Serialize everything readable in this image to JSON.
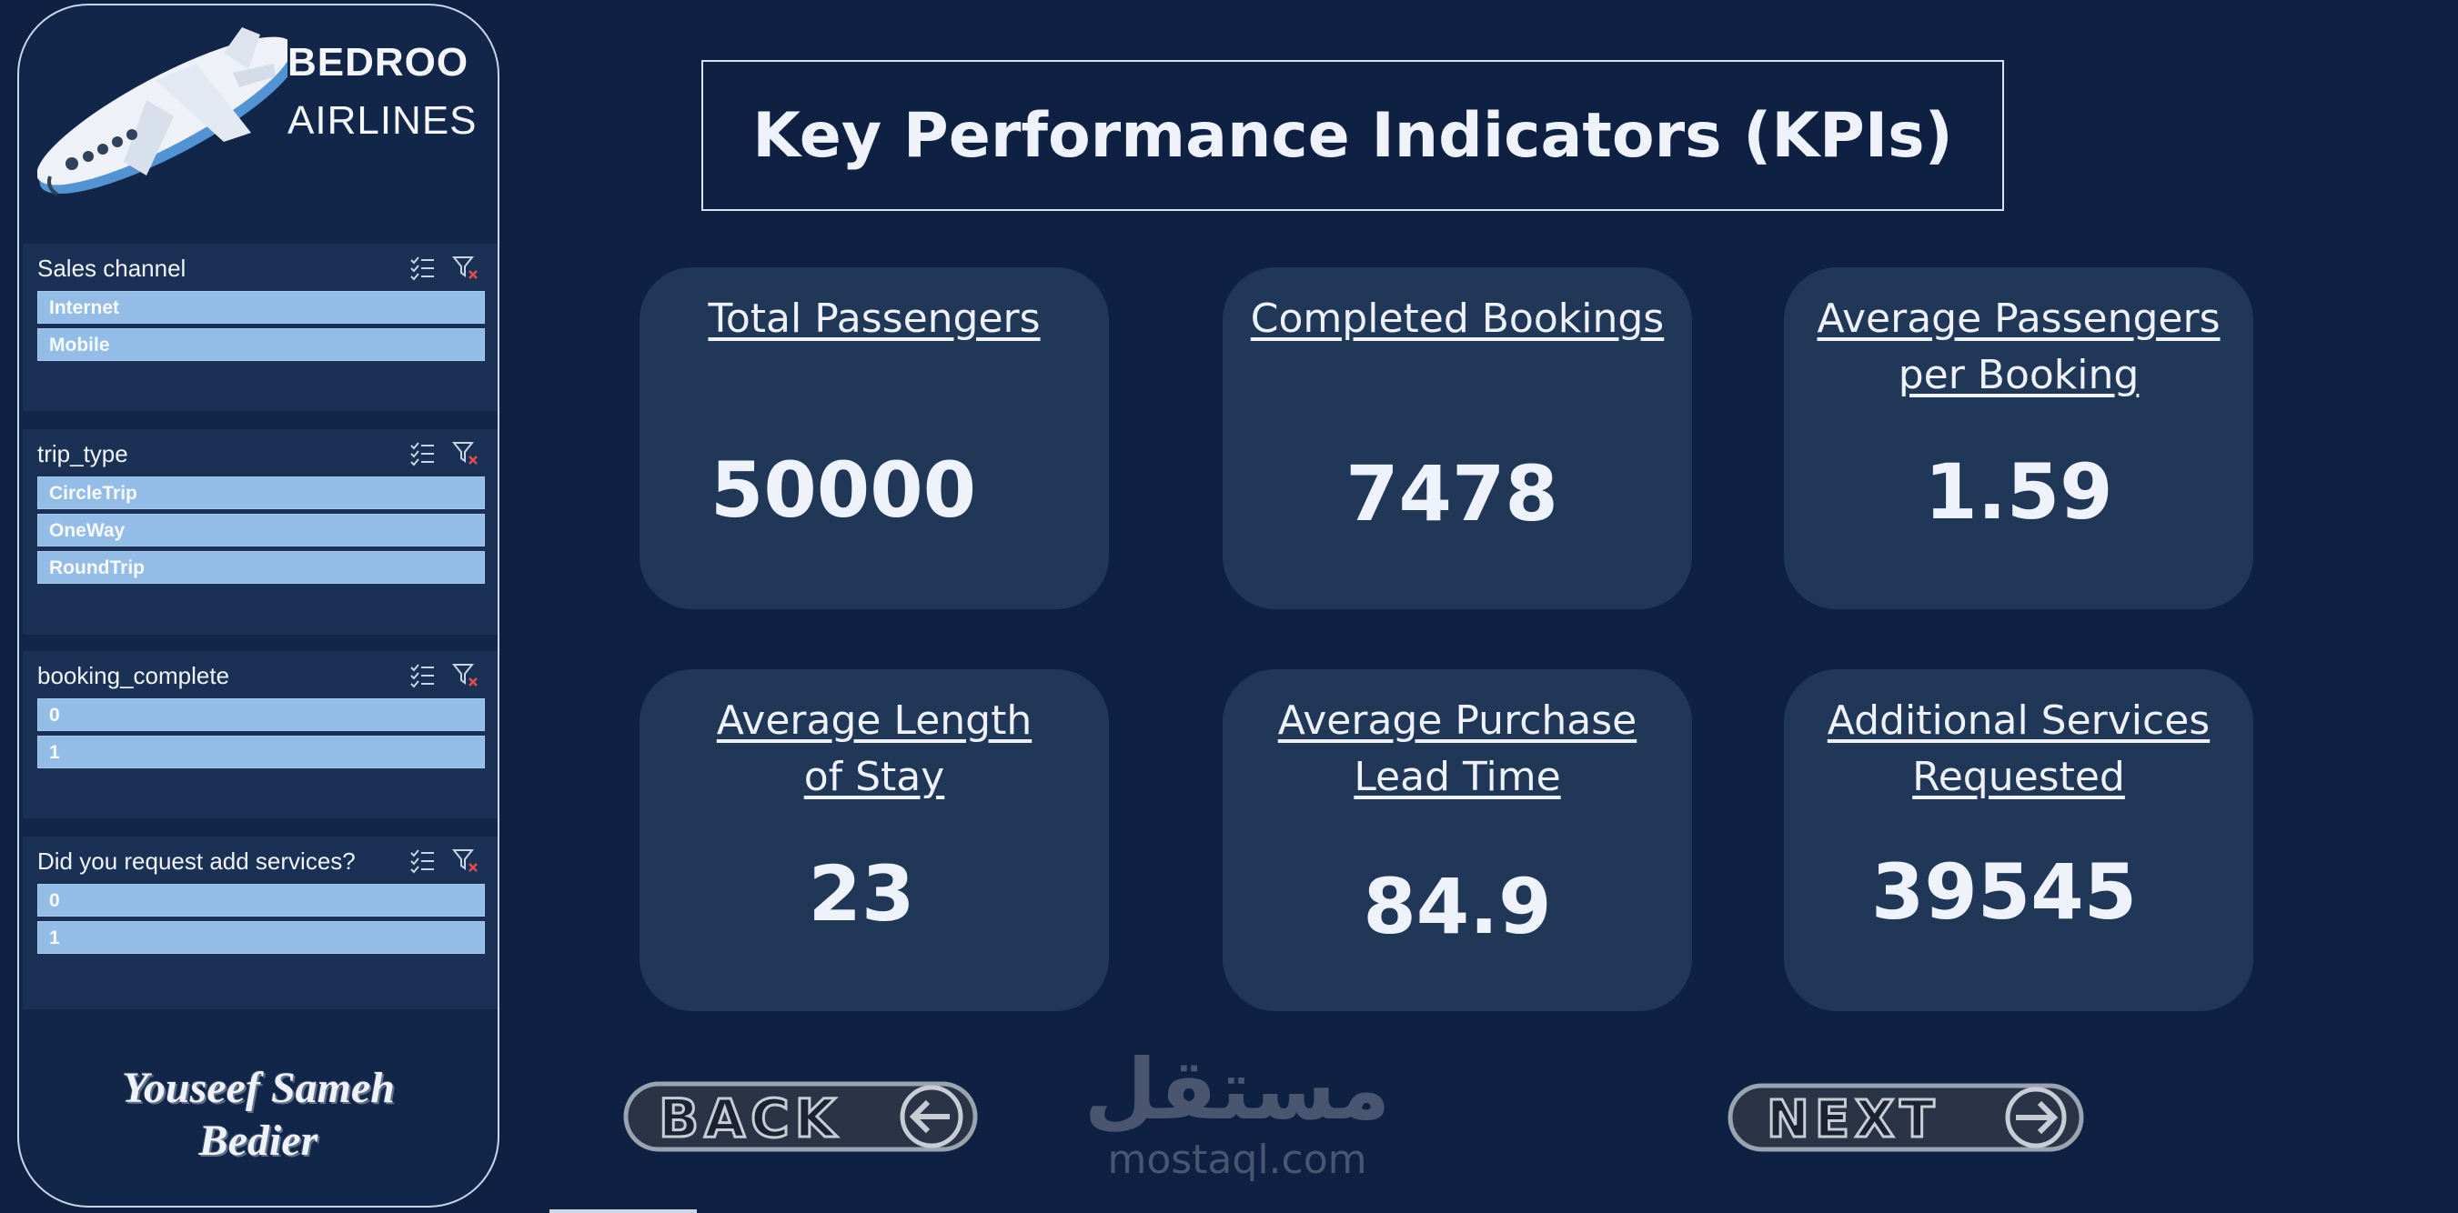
{
  "brand": {
    "line1": "BEDROO",
    "line2": "AIRLINES"
  },
  "slicers": [
    {
      "title": "Sales channel",
      "items": [
        "Internet",
        "Mobile"
      ]
    },
    {
      "title": "trip_type",
      "items": [
        "CircleTrip",
        "OneWay",
        "RoundTrip"
      ]
    },
    {
      "title": "booking_complete",
      "items": [
        "0",
        "1"
      ]
    },
    {
      "title": "Did you request add services?",
      "items": [
        "0",
        "1"
      ]
    }
  ],
  "author": {
    "line1": "Youseef Sameh",
    "line2": "Bedier"
  },
  "page_title": "Key Performance Indicators (KPIs)",
  "kpis": [
    {
      "label_line1": "Total Passengers",
      "label_line2": "",
      "value": "50000"
    },
    {
      "label_line1": "Completed Bookings",
      "label_line2": "",
      "value": "7478"
    },
    {
      "label_line1": "Average Passengers",
      "label_line2": "per Booking",
      "value": "1.59"
    },
    {
      "label_line1": "Average Length",
      "label_line2": "of Stay",
      "value": "23"
    },
    {
      "label_line1": "Average Purchase",
      "label_line2": "Lead Time",
      "value": "84.9"
    },
    {
      "label_line1": "Additional Services",
      "label_line2": "Requested",
      "value": "39545"
    }
  ],
  "nav": {
    "back": "BACK",
    "next": "NEXT"
  },
  "watermark": {
    "arabic": "مستقل",
    "url": "mostaql.com"
  },
  "colors": {
    "background": "#0f2143",
    "card": "#213758",
    "slicer_item": "#93bce6"
  },
  "icons": {
    "plane": "airplane-icon",
    "multi_select": "multi-select-icon",
    "clear_filter": "clear-filter-icon"
  }
}
